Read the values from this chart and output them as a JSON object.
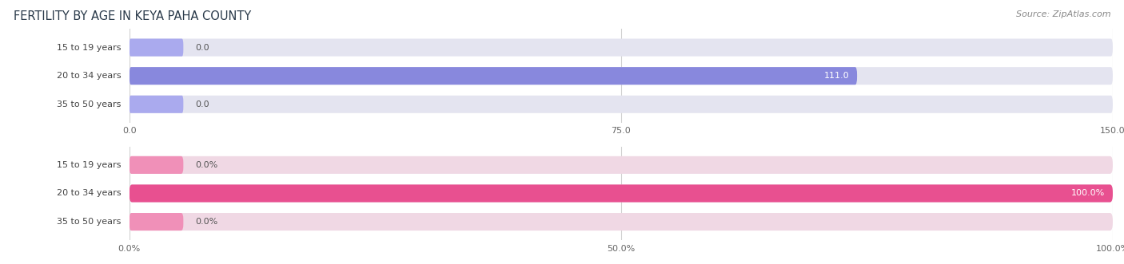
{
  "title": "FERTILITY BY AGE IN KEYA PAHA COUNTY",
  "source": "Source: ZipAtlas.com",
  "top_chart": {
    "categories": [
      "15 to 19 years",
      "20 to 34 years",
      "35 to 50 years"
    ],
    "values": [
      0.0,
      111.0,
      0.0
    ],
    "xlim_max": 150,
    "xticks": [
      0.0,
      75.0,
      150.0
    ],
    "xtick_labels": [
      "0.0",
      "75.0",
      "150.0"
    ],
    "bar_color": "#8888dd",
    "bar_bg_color": "#e4e4f0",
    "stub_color": "#aaaaee"
  },
  "bottom_chart": {
    "categories": [
      "15 to 19 years",
      "20 to 34 years",
      "35 to 50 years"
    ],
    "values": [
      0.0,
      100.0,
      0.0
    ],
    "xlim_max": 100,
    "xticks": [
      0.0,
      50.0,
      100.0
    ],
    "xtick_labels": [
      "0.0%",
      "50.0%",
      "100.0%"
    ],
    "bar_color": "#e85090",
    "bar_bg_color": "#f0d8e4",
    "stub_color": "#f090b8"
  },
  "background_color": "#ffffff",
  "title_fontsize": 10.5,
  "source_fontsize": 8,
  "label_fontsize": 8,
  "tick_fontsize": 8,
  "bar_height": 0.62,
  "category_label_color": "#444444",
  "grid_color": "#d0d0d0",
  "inside_label_color": "#ffffff",
  "outside_label_color": "#555555"
}
